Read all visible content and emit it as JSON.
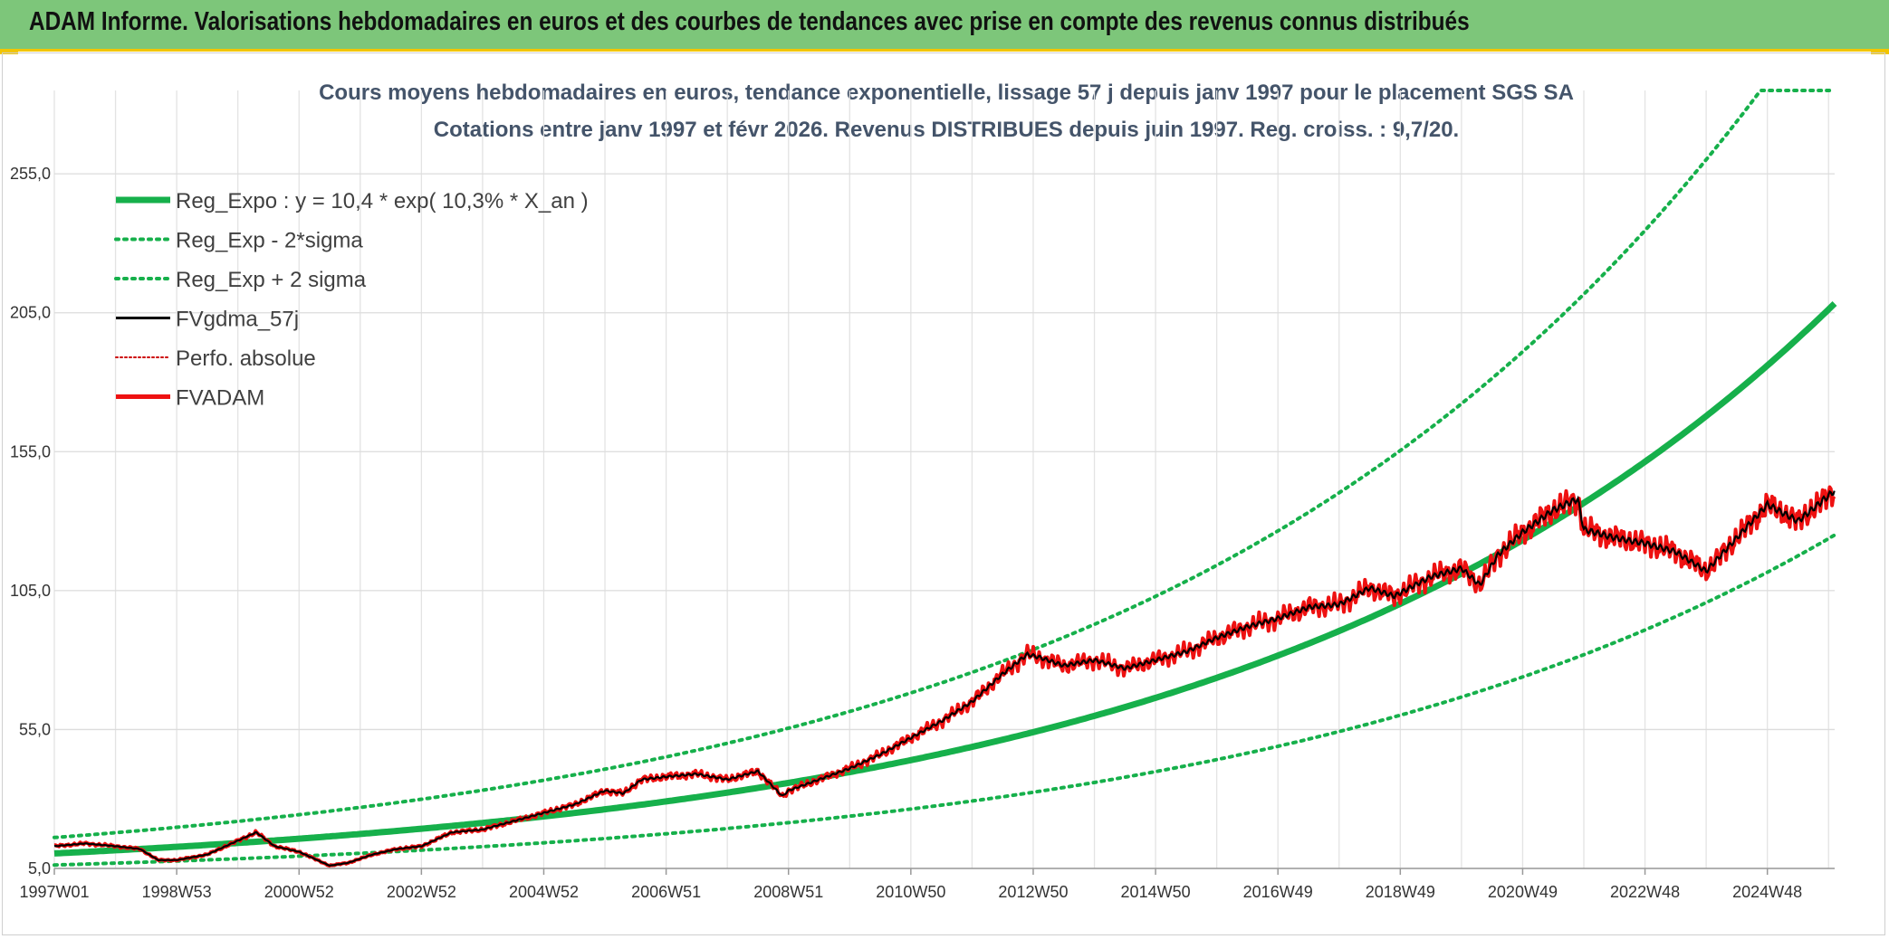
{
  "header": {
    "banner_title": "ADAM Informe. Valorisations hebdomadaires en euros et des courbes de tendances avec prise en compte des revenus connus distribués"
  },
  "colors": {
    "banner_bg": "#7dc67a",
    "accent_yellow": "#f2c500",
    "reg_expo": "#16b04b",
    "fvgdma": "#000000",
    "fvadam": "#ee1111",
    "perfo": "#cc0000",
    "title_text": "#44546a"
  },
  "chart_data": {
    "type": "line",
    "title": "Cours moyens hebdomadaires en euros, tendance exponentielle, lissage 57 j depuis janv 1997 pour le placement SGS SA",
    "subtitle": "Cotations entre janv 1997 et févr 2026. Revenus DISTRIBUES depuis juin 1997. Reg. croiss. : 9,7/20.",
    "xlabel": "",
    "ylabel": "",
    "x_range": [
      1997.0,
      2026.1
    ],
    "y_range": [
      5,
      285
    ],
    "y_ticks": [
      "5,0",
      "55,0",
      "105,0",
      "155,0",
      "205,0",
      "255,0"
    ],
    "y_tick_values": [
      5,
      55,
      105,
      155,
      205,
      255
    ],
    "x_ticks": [
      "1997W01",
      "1998W53",
      "2000W52",
      "2002W52",
      "2004W52",
      "2006W51",
      "2008W51",
      "2010W50",
      "2012W50",
      "2014W50",
      "2016W49",
      "2018W49",
      "2020W49",
      "2022W48",
      "2024W48"
    ],
    "x_tick_values": [
      1997.0,
      1999.0,
      2001.0,
      2003.0,
      2005.0,
      2007.0,
      2009.0,
      2011.0,
      2013.0,
      2015.0,
      2017.0,
      2019.0,
      2021.0,
      2023.0,
      2025.0
    ],
    "grid": true,
    "legend_position": "top-left",
    "regression": {
      "a": 10.4,
      "rate_pct": 10.3,
      "lower_factor": 0.6,
      "upper_factor": 1.55,
      "cap": 285
    },
    "series": [
      {
        "name": "Reg_Expo : y = 10,4 * exp( 10,3% *  X_an )",
        "style": "solid-thick",
        "color": "#16b04b"
      },
      {
        "name": "Reg_Exp - 2*sigma",
        "style": "dotted",
        "color": "#16b04b"
      },
      {
        "name": "Reg_Exp + 2 sigma",
        "style": "dotted",
        "color": "#16b04b"
      },
      {
        "name": "FVgdma_57j",
        "style": "solid",
        "color": "#000000"
      },
      {
        "name": "Perfo. absolue",
        "style": "dotted-thin",
        "color": "#cc0000"
      },
      {
        "name": "FVADAM",
        "style": "solid",
        "color": "#ee1111",
        "x": [
          1997.0,
          1997.5,
          1998.0,
          1998.4,
          1998.7,
          1999.0,
          1999.5,
          2000.0,
          2000.3,
          2000.6,
          2001.0,
          2001.5,
          2001.8,
          2002.2,
          2002.6,
          2003.0,
          2003.5,
          2004.0,
          2004.5,
          2005.0,
          2005.5,
          2006.0,
          2006.3,
          2006.6,
          2007.0,
          2007.5,
          2008.0,
          2008.5,
          2008.9,
          2009.0,
          2009.5,
          2010.0,
          2010.5,
          2011.0,
          2011.5,
          2012.0,
          2012.5,
          2012.9,
          2013.1,
          2013.5,
          2014.0,
          2014.5,
          2015.0,
          2015.5,
          2016.0,
          2016.5,
          2017.0,
          2017.5,
          2018.0,
          2018.5,
          2018.9,
          2019.5,
          2020.0,
          2020.3,
          2020.6,
          2021.0,
          2021.5,
          2021.9,
          2022.0,
          2022.5,
          2023.0,
          2023.5,
          2024.0,
          2024.5,
          2025.0,
          2025.5,
          2026.1
        ],
        "values": [
          13,
          14,
          13,
          12,
          8,
          8,
          10,
          15,
          18,
          13,
          11,
          6,
          7,
          10,
          12,
          13,
          18,
          19,
          22,
          25,
          28,
          33,
          32,
          37,
          38,
          39,
          37,
          40,
          31,
          33,
          37,
          41,
          46,
          52,
          58,
          65,
          75,
          82,
          81,
          78,
          80,
          77,
          80,
          83,
          88,
          92,
          95,
          99,
          100,
          106,
          103,
          110,
          113,
          107,
          118,
          126,
          134,
          138,
          127,
          124,
          122,
          119,
          112,
          124,
          136,
          130,
          141
        ]
      }
    ]
  },
  "legend": {
    "items": [
      {
        "label": "Reg_Expo : y = 10,4 * exp( 10,3% *  X_an )"
      },
      {
        "label": "Reg_Exp - 2*sigma"
      },
      {
        "label": "Reg_Exp + 2 sigma"
      },
      {
        "label": "FVgdma_57j"
      },
      {
        "label": "Perfo. absolue"
      },
      {
        "label": "FVADAM"
      }
    ]
  }
}
